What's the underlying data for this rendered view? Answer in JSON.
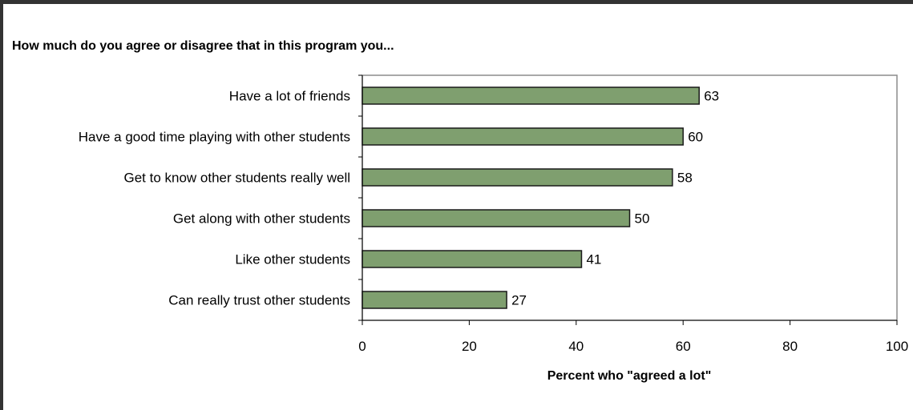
{
  "chart_data": {
    "type": "bar",
    "orientation": "horizontal",
    "title": "How much do you agree or disagree that in this program you...",
    "categories": [
      "Have a lot of friends",
      "Have a good time playing with other students",
      "Get to know other students really well",
      "Get along with other students",
      "Like other students",
      "Can really trust other students"
    ],
    "values": [
      63,
      60,
      58,
      50,
      41,
      27
    ],
    "xlabel": "Percent who \"agreed a lot\"",
    "ylabel": "",
    "xlim": [
      0,
      100
    ],
    "xticks": [
      0,
      20,
      40,
      60,
      80,
      100
    ],
    "grid": false,
    "data_labels": true,
    "bar_color": "#7f9f6f",
    "bar_edge_color": "#1a1a1a"
  }
}
